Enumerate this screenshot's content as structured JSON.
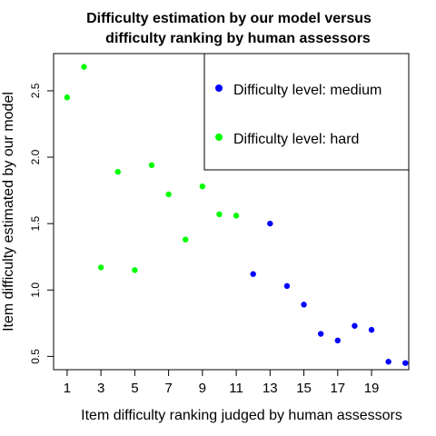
{
  "chart_data": {
    "type": "scatter",
    "title_lines": [
      "Difficulty estimation by our model versus",
      "difficulty ranking by human assessors"
    ],
    "xlabel": "Item difficulty ranking judged by human assessors",
    "ylabel": "Item difficulty estimated by our model",
    "xlim": [
      0.2,
      21.2
    ],
    "ylim": [
      0.4,
      2.78
    ],
    "x_ticks": [
      1,
      3,
      5,
      7,
      9,
      11,
      13,
      15,
      17,
      19
    ],
    "y_ticks": [
      0.5,
      1.0,
      1.5,
      2.0,
      2.5
    ],
    "y_tick_labels": [
      "0.5",
      "1.0",
      "1.5",
      "2.0",
      "2.5"
    ],
    "legend": {
      "placement": "top-right",
      "entries": [
        {
          "label": "Difficulty level: medium",
          "color": "#0000ff"
        },
        {
          "label": "Difficulty level: hard",
          "color": "#00ff00"
        }
      ]
    },
    "series": [
      {
        "name": "Difficulty level: medium",
        "color": "#0000ff",
        "points": [
          {
            "x": 12,
            "y": 1.12
          },
          {
            "x": 13,
            "y": 1.5
          },
          {
            "x": 14,
            "y": 1.03
          },
          {
            "x": 15,
            "y": 0.89
          },
          {
            "x": 16,
            "y": 0.67
          },
          {
            "x": 17,
            "y": 0.62
          },
          {
            "x": 18,
            "y": 0.73
          },
          {
            "x": 19,
            "y": 0.7
          },
          {
            "x": 20,
            "y": 0.46
          },
          {
            "x": 21,
            "y": 0.45
          }
        ]
      },
      {
        "name": "Difficulty level: hard",
        "color": "#00ff00",
        "points": [
          {
            "x": 1,
            "y": 2.45
          },
          {
            "x": 2,
            "y": 2.68
          },
          {
            "x": 3,
            "y": 1.17
          },
          {
            "x": 4,
            "y": 1.89
          },
          {
            "x": 5,
            "y": 1.15
          },
          {
            "x": 6,
            "y": 1.94
          },
          {
            "x": 7,
            "y": 1.72
          },
          {
            "x": 8,
            "y": 1.38
          },
          {
            "x": 9,
            "y": 1.78
          },
          {
            "x": 10,
            "y": 1.57
          },
          {
            "x": 11,
            "y": 1.56
          }
        ]
      }
    ]
  }
}
